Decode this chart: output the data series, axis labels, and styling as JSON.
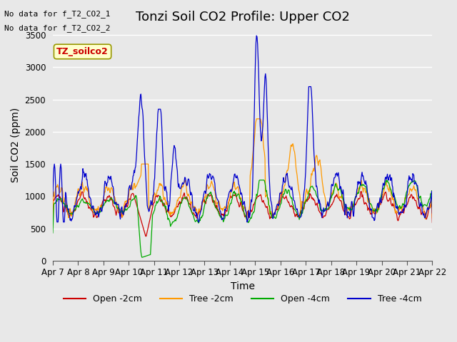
{
  "title": "Tonzi Soil CO2 Profile: Upper CO2",
  "xlabel": "Time",
  "ylabel": "Soil CO2 (ppm)",
  "ylim": [
    0,
    3600
  ],
  "yticks": [
    0,
    500,
    1000,
    1500,
    2000,
    2500,
    3000,
    3500
  ],
  "xticklabels": [
    "Apr 7",
    "Apr 8",
    "Apr 9",
    "Apr 10",
    "Apr 11",
    "Apr 12",
    "Apr 13",
    "Apr 14",
    "Apr 15",
    "Apr 16",
    "Apr 17",
    "Apr 18",
    "Apr 19",
    "Apr 20",
    "Apr 21",
    "Apr 22"
  ],
  "legend_labels": [
    "Open -2cm",
    "Tree -2cm",
    "Open -4cm",
    "Tree -4cm"
  ],
  "legend_colors": [
    "#cc0000",
    "#ff9900",
    "#00aa00",
    "#0000cc"
  ],
  "no_data_text": [
    "No data for f_T2_CO2_1",
    "No data for f_T2_CO2_2"
  ],
  "annotation_text": "TZ_soilco2",
  "background_color": "#e8e8e8",
  "plot_bg_color": "#e8e8e8",
  "grid_color": "#ffffff",
  "title_fontsize": 13,
  "axis_label_fontsize": 10,
  "tick_fontsize": 8.5,
  "legend_fontsize": 9
}
